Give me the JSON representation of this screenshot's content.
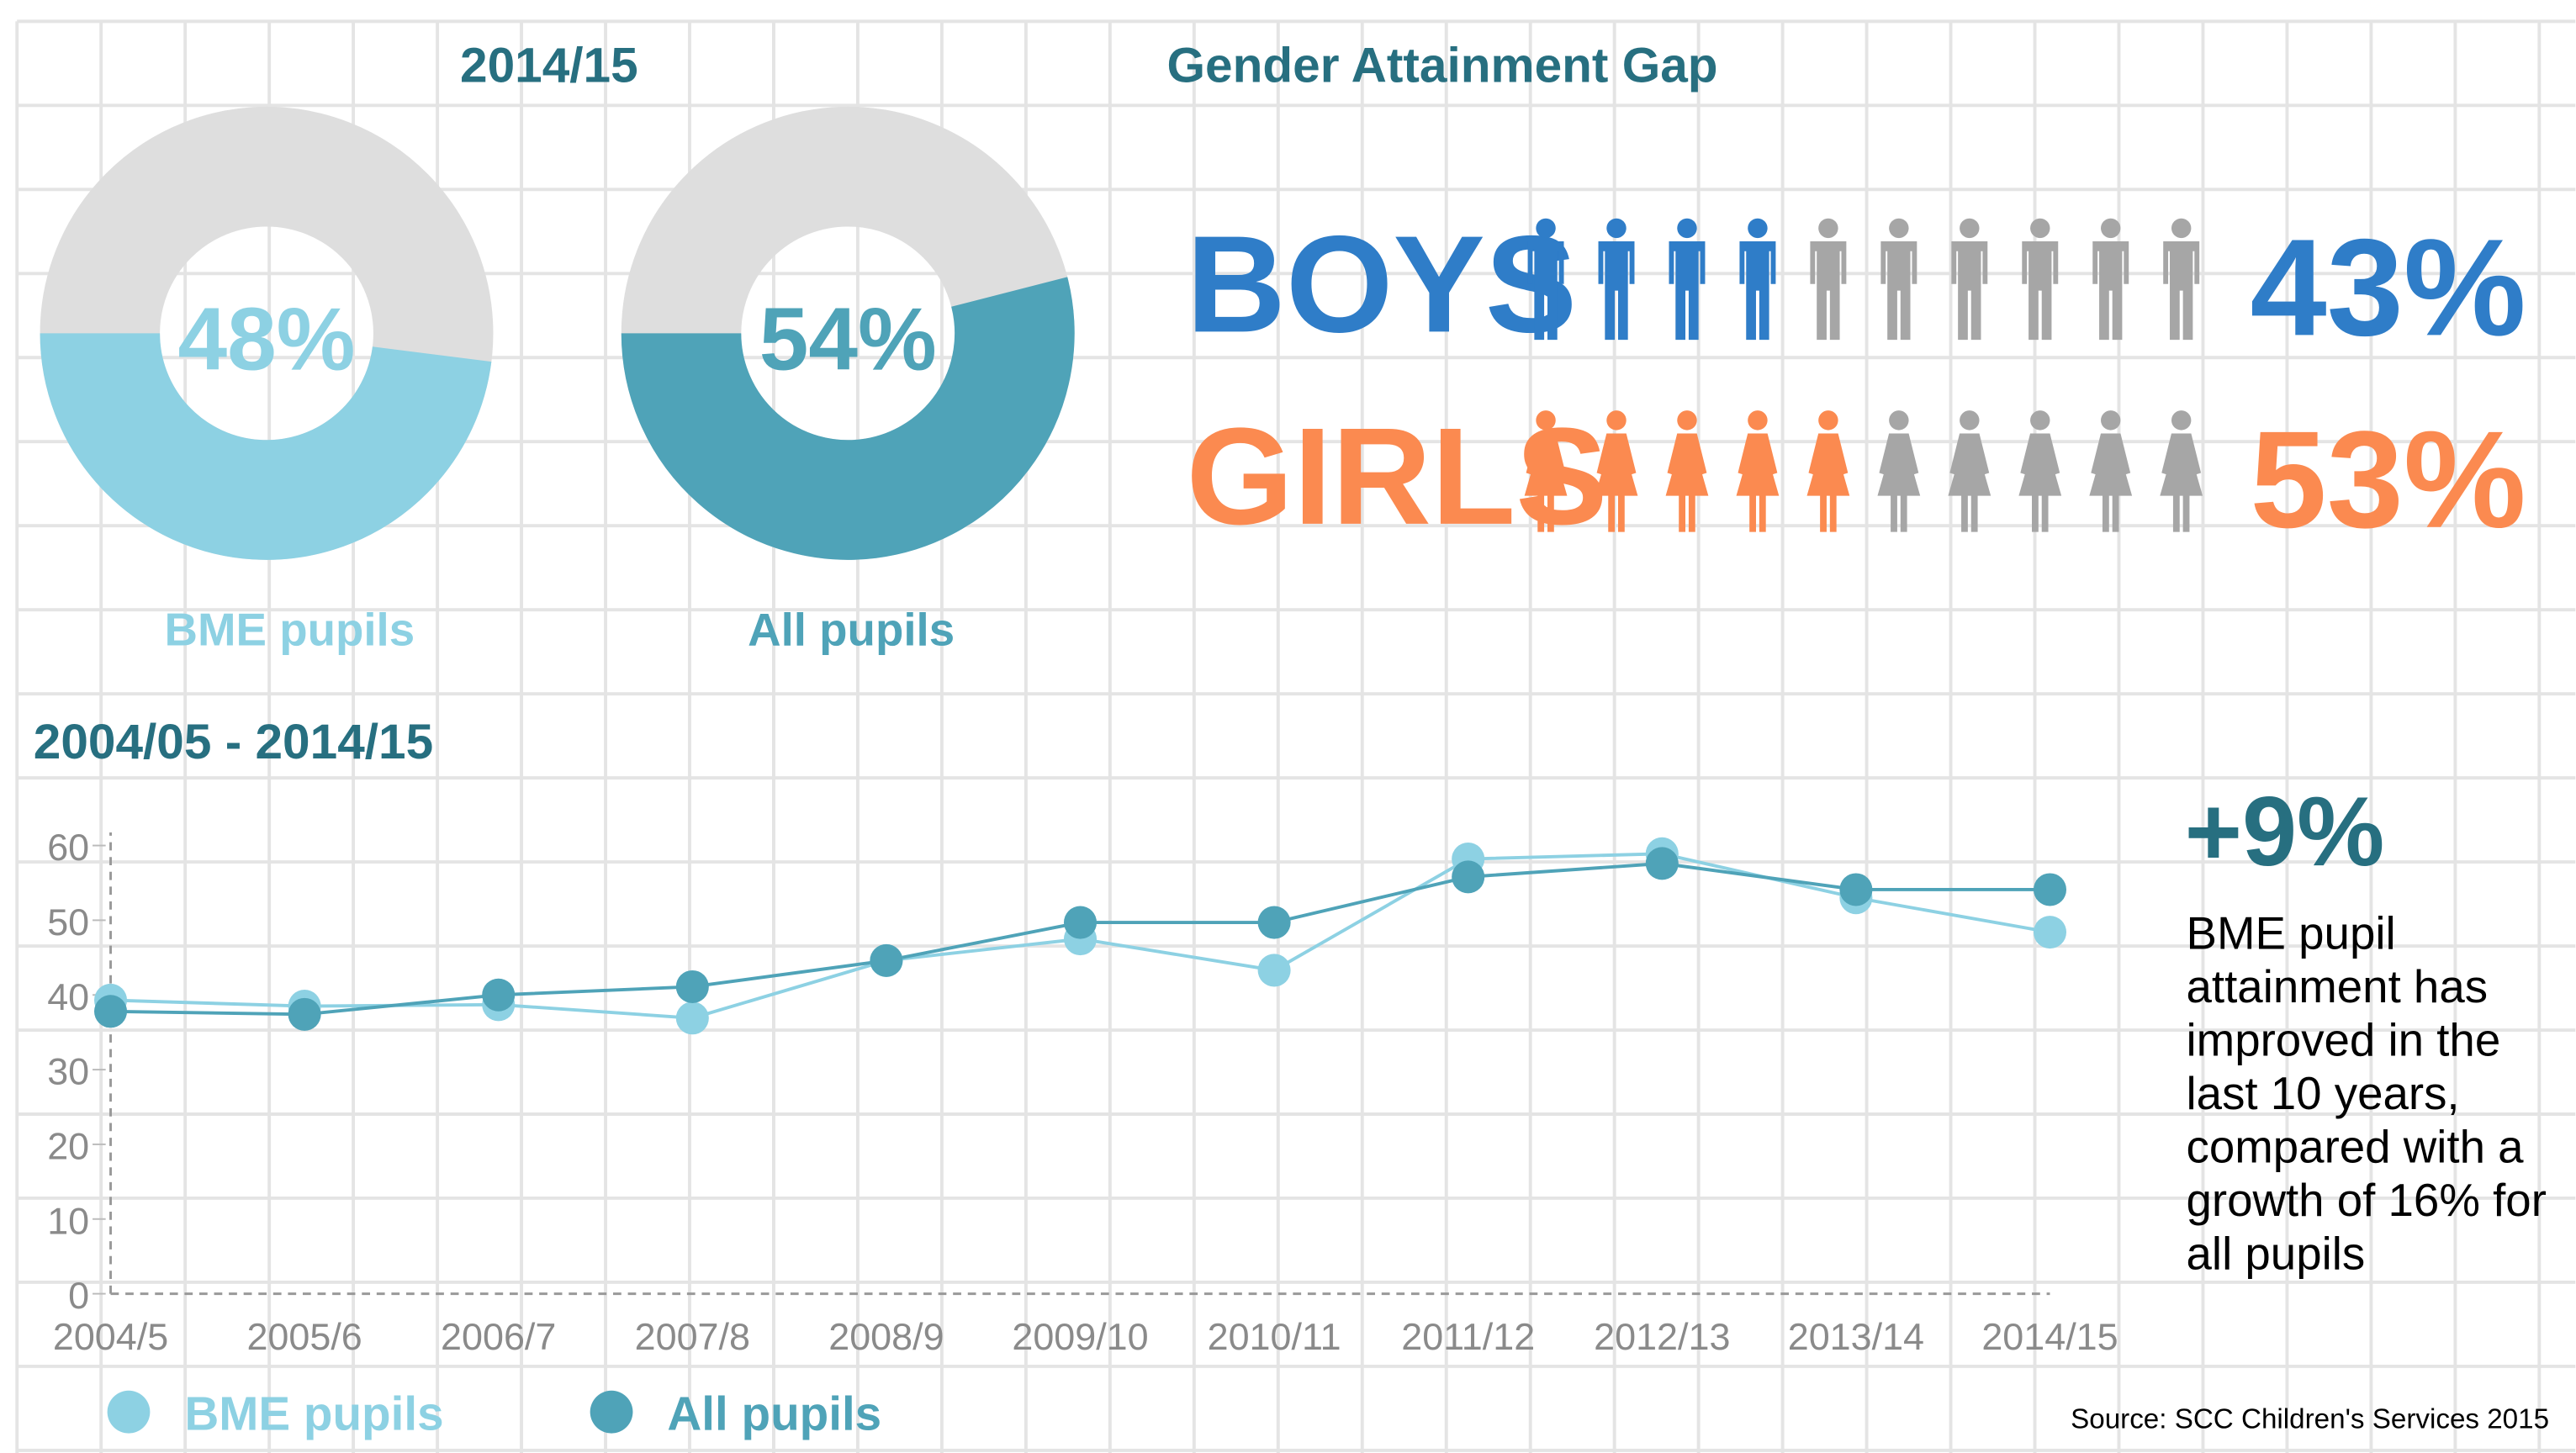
{
  "heading": "2014/15",
  "source": "Source: SCC Children's Services 2015",
  "chart_data": [
    {
      "type": "donut",
      "label": "BME pupils",
      "value": 48,
      "value_label": "48%",
      "color": "#8dd1e3",
      "rest_color": "#dedede"
    },
    {
      "type": "donut",
      "label": "All pupils",
      "value": 54,
      "value_label": "54%",
      "color": "#4fa3b8",
      "rest_color": "#dedede"
    },
    {
      "type": "pictogram",
      "title": "Gender Attainment Gap",
      "icon_count": 10,
      "rest_color": "#a6a6a6",
      "rows": [
        {
          "name": "BOYS",
          "icon": "man",
          "value": 43,
          "value_label": "43%",
          "color": "#2f7dc8"
        },
        {
          "name": "GIRLS",
          "icon": "woman",
          "value": 53,
          "value_label": "53%",
          "color": "#fb8a50"
        }
      ]
    },
    {
      "type": "line",
      "title": "2004/05 - 2014/15",
      "categories": [
        "2004/5",
        "2005/6",
        "2006/7",
        "2007/8",
        "2008/9",
        "2009/10",
        "2010/11",
        "2011/12",
        "2012/13",
        "2013/14",
        "2014/15"
      ],
      "series": [
        {
          "name": "BME pupils",
          "color": "#8dd1e3",
          "values": [
            39.3,
            38.5,
            38.7,
            36.9,
            44.6,
            47.5,
            43.3,
            58.2,
            58.9,
            53,
            48.4
          ]
        },
        {
          "name": "All pupils",
          "color": "#4fa3b8",
          "values": [
            37.8,
            37.4,
            40,
            41.1,
            44.6,
            49.7,
            49.7,
            55.8,
            57.6,
            54.1,
            54.1
          ]
        }
      ],
      "ylim": [
        0,
        60
      ],
      "yticks": [
        0,
        10,
        20,
        30,
        40,
        50,
        60
      ],
      "annotation": {
        "headline": "+9%",
        "lines": [
          "BME pupil",
          "attainment has",
          "improved in the",
          "last 10 years,",
          "compared with a",
          "growth of 16% for",
          "all pupils"
        ]
      }
    }
  ]
}
